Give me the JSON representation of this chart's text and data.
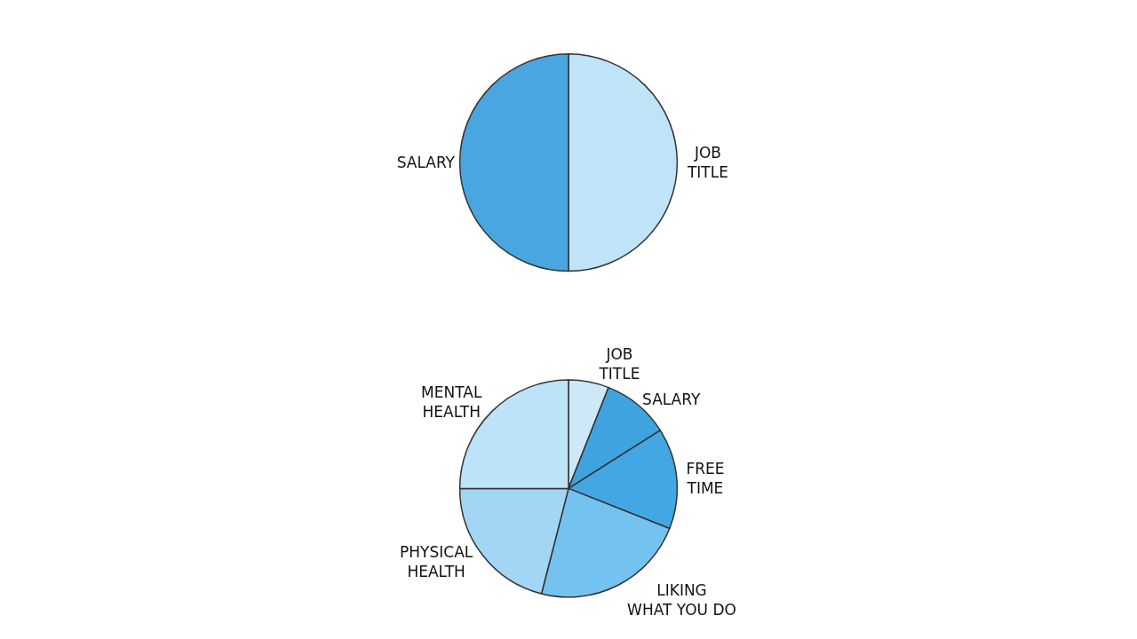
{
  "chart_data": [
    {
      "type": "pie",
      "categories": [
        "JOB TITLE",
        "SALARY"
      ],
      "values": [
        50,
        50
      ],
      "colors": [
        "#bfe3f7",
        "#4aa6e0"
      ]
    },
    {
      "type": "pie",
      "categories": [
        "JOB TITLE",
        "SALARY",
        "FREE TIME",
        "LIKING WHAT YOU DO",
        "PHYSICAL HEALTH",
        "MENTAL HEALTH"
      ],
      "values": [
        6,
        10,
        15,
        23,
        21,
        25
      ],
      "colors": [
        "#cde9f8",
        "#3fa3e0",
        "#42a7e3",
        "#74c2f0",
        "#a3d6f5",
        "#bde3f8"
      ]
    }
  ]
}
